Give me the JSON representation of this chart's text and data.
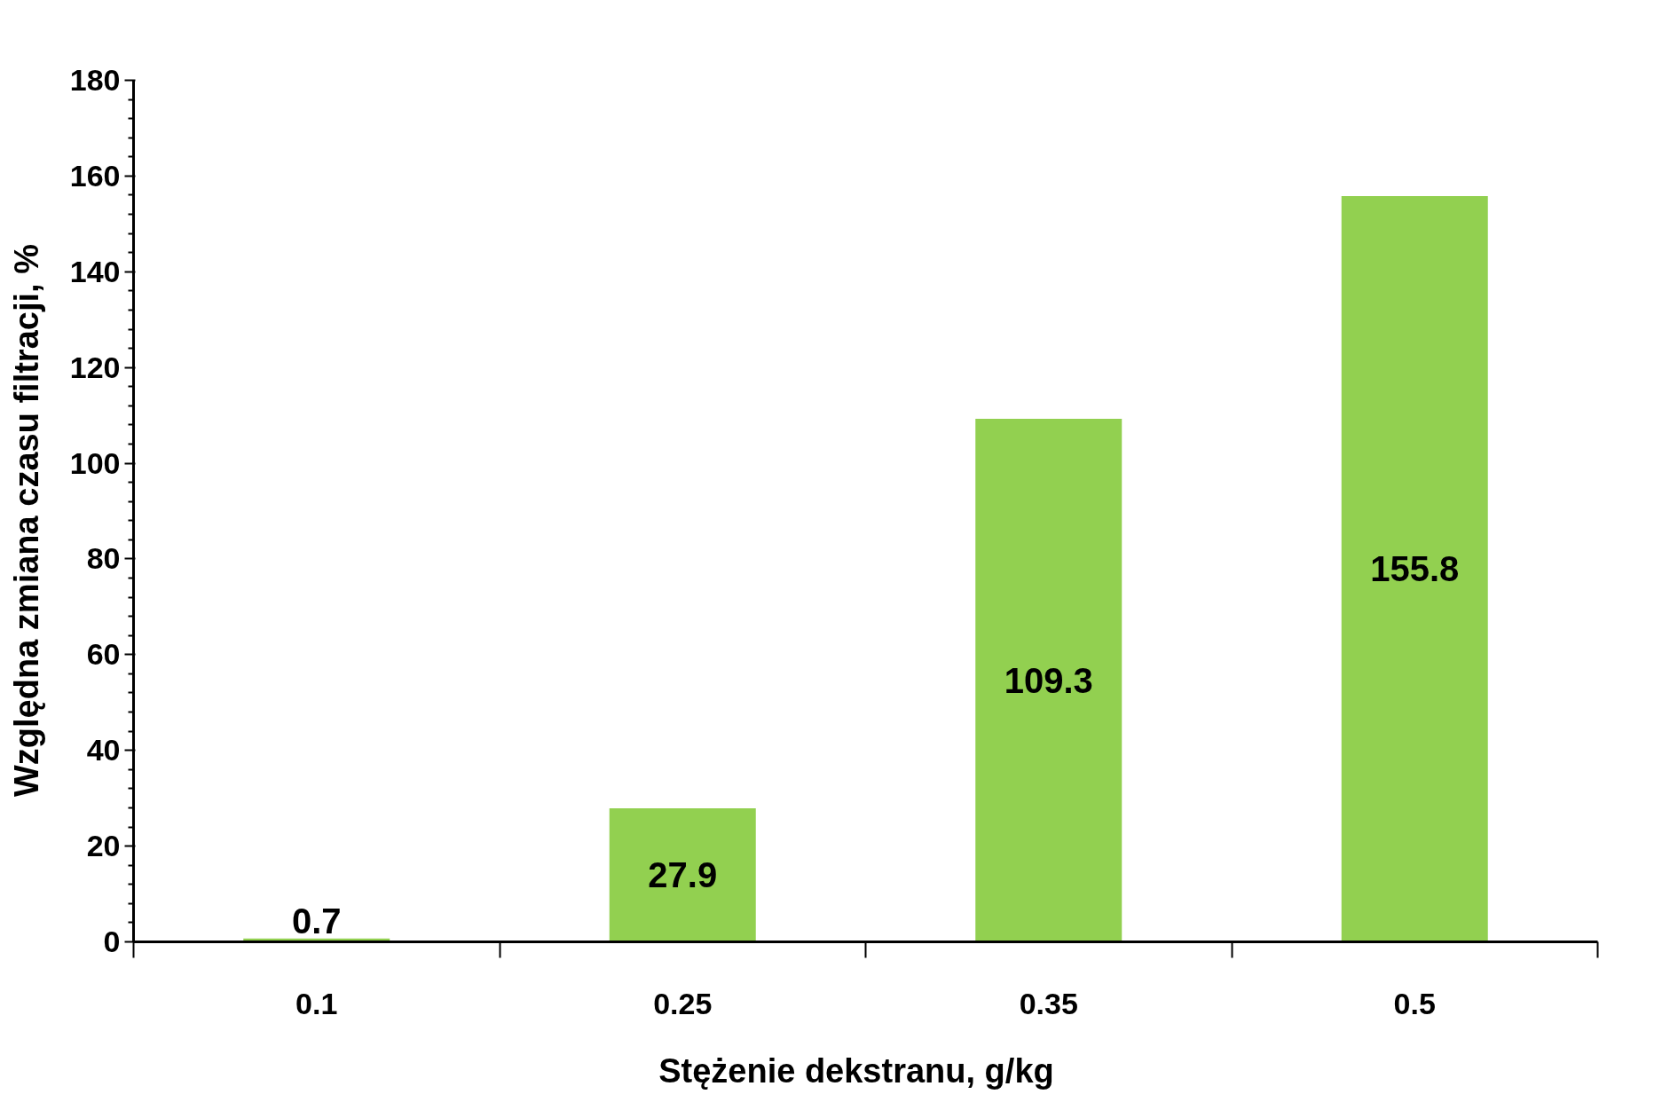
{
  "chart_data": {
    "type": "bar",
    "xlabel": "Stężenie dekstranu,   g/kg",
    "ylabel": "Względna zmiana czasu filtracji,   %",
    "categories": [
      "0.1",
      "0.25",
      "0.35",
      "0.5"
    ],
    "values": [
      0.7,
      27.9,
      109.3,
      155.8
    ],
    "color": "#92d050",
    "ylim": [
      0,
      180
    ],
    "yticks": [
      0,
      20,
      40,
      60,
      80,
      100,
      120,
      140,
      160,
      180
    ],
    "data_labels": true,
    "grid": false
  }
}
